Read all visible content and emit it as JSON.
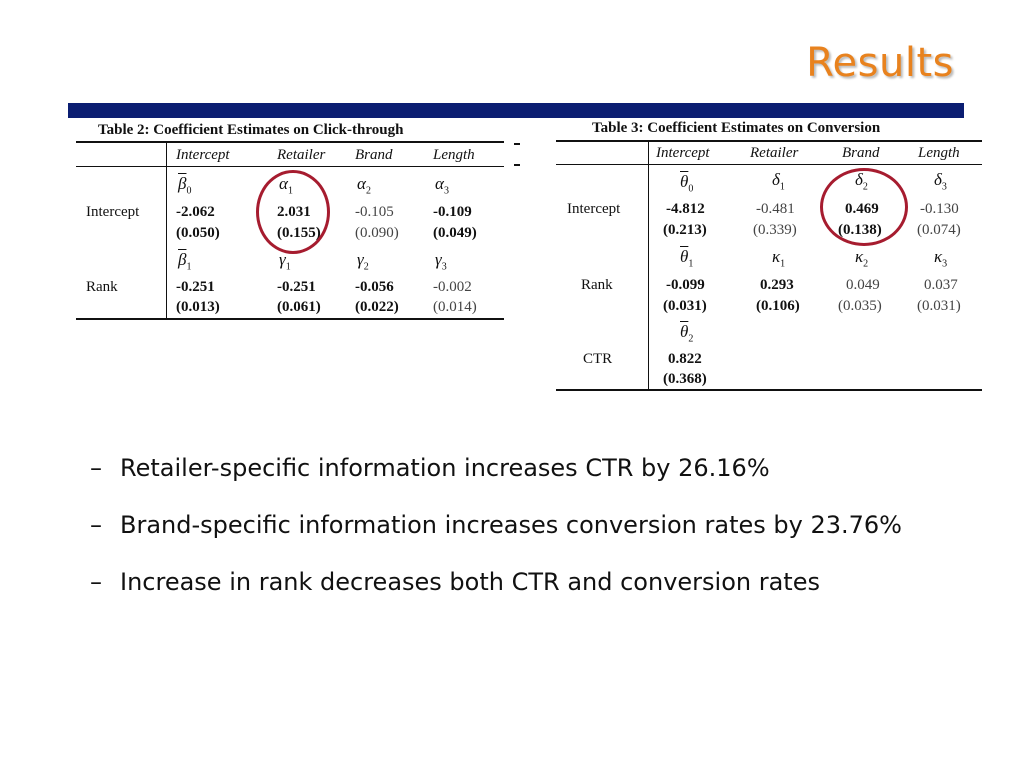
{
  "slide": {
    "title": "Results"
  },
  "table2": {
    "caption": "Table 2: Coefficient Estimates on Click-through",
    "headers": [
      "Intercept",
      "Retailer",
      "Brand",
      "Length"
    ],
    "row_labels": [
      "Intercept",
      "Rank"
    ],
    "symbols_row1": [
      "β",
      "α",
      "α",
      "α"
    ],
    "subs_row1": [
      "0",
      "1",
      "2",
      "3"
    ],
    "values_row1": [
      "-2.062",
      "2.031",
      "-0.105",
      "-0.109"
    ],
    "se_row1": [
      "(0.050)",
      "(0.155)",
      "(0.090)",
      "(0.049)"
    ],
    "symbols_row2": [
      "β",
      "γ",
      "γ",
      "γ"
    ],
    "subs_row2": [
      "1",
      "1",
      "2",
      "3"
    ],
    "values_row2": [
      "-0.251",
      "-0.251",
      "-0.056",
      "-0.002"
    ],
    "se_row2": [
      "(0.013)",
      "(0.061)",
      "(0.022)",
      "(0.014)"
    ]
  },
  "table3": {
    "caption": "Table 3: Coefficient Estimates on Conversion",
    "headers": [
      "Intercept",
      "Retailer",
      "Brand",
      "Length"
    ],
    "row_labels": [
      "Intercept",
      "Rank",
      "CTR"
    ],
    "symbols_row1": [
      "θ",
      "δ",
      "δ",
      "δ"
    ],
    "subs_row1": [
      "0",
      "1",
      "2",
      "3"
    ],
    "values_row1": [
      "-4.812",
      "-0.481",
      "0.469",
      "-0.130"
    ],
    "se_row1": [
      "(0.213)",
      "(0.339)",
      "(0.138)",
      "(0.074)"
    ],
    "symbols_row2": [
      "θ",
      "κ",
      "κ",
      "κ"
    ],
    "subs_row2": [
      "1",
      "1",
      "2",
      "3"
    ],
    "values_row2": [
      "-0.099",
      "0.293",
      "0.049",
      "0.037"
    ],
    "se_row2": [
      "(0.031)",
      "(0.106)",
      "(0.035)",
      "(0.031)"
    ],
    "symbols_row3": [
      "θ"
    ],
    "subs_row3": [
      "2"
    ],
    "values_row3": [
      "0.822"
    ],
    "se_row3": [
      "(0.368)"
    ]
  },
  "bullets": [
    {
      "dash": "–",
      "text": "Retailer-specific information increases CTR by 26.16%"
    },
    {
      "dash": "–",
      "text": "Brand-specific information increases conversion rates by 23.76%"
    },
    {
      "dash": "–",
      "text": "Increase in rank decreases both CTR and conversion rates"
    }
  ],
  "colors": {
    "title": "#e8821e",
    "bar": "#0b1e72",
    "circle": "#a61c2f"
  }
}
